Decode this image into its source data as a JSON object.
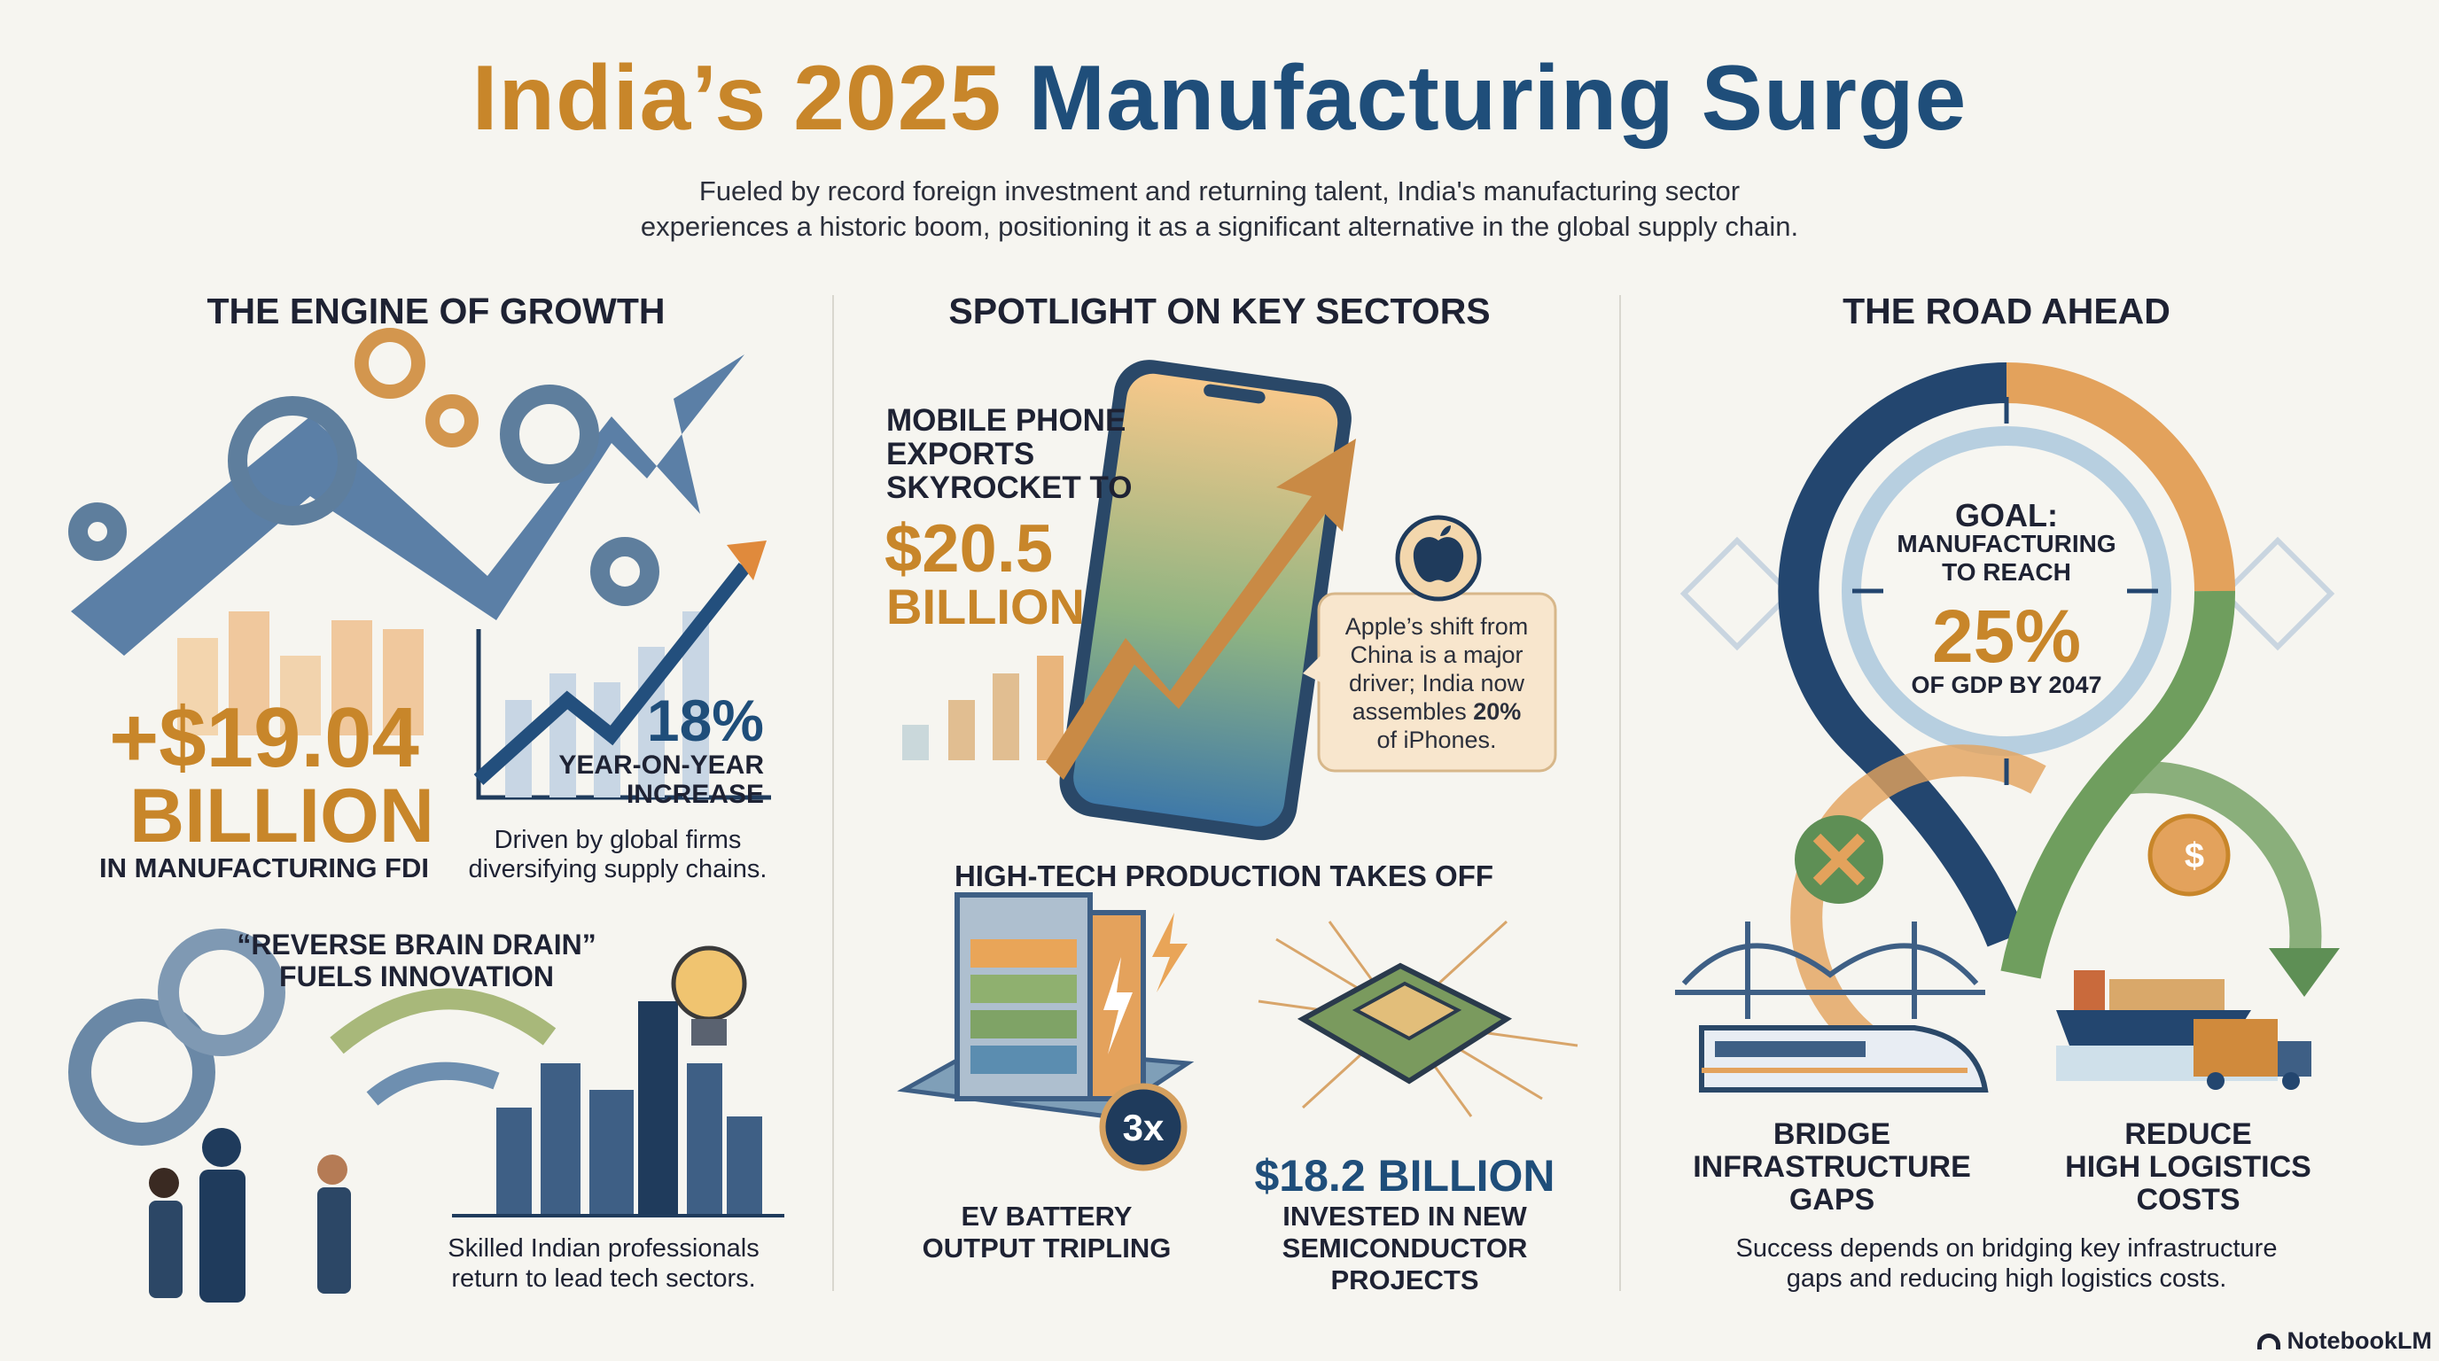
{
  "title": {
    "part1": "India’s 2025",
    "part2": "Manufacturing Surge"
  },
  "subtitle": {
    "line1": "Fueled by record foreign investment and returning talent, India's manufacturing sector",
    "line2": "experiences a historic boom, positioning it as a significant alternative in the global supply chain."
  },
  "engine": {
    "heading": "THE ENGINE OF GROWTH",
    "fdi_value": "+$19.04",
    "fdi_unit": "BILLION",
    "fdi_label": "IN MANUFACTURING FDI",
    "growth_pct": "18%",
    "growth_line1": "YEAR-ON-YEAR",
    "growth_line2": "INCREASE",
    "driver_line1": "Driven by global firms",
    "driver_line2": "diversifying supply chains.",
    "brain_line1": "“REVERSE BRAIN DRAIN”",
    "brain_line2": "FUELS INNOVATION",
    "skilled_line1": "Skilled Indian professionals",
    "skilled_line2": "return to lead tech sectors."
  },
  "sectors": {
    "heading": "SPOTLIGHT ON KEY SECTORS",
    "mobile_line1": "MOBILE PHONE",
    "mobile_line2": "EXPORTS",
    "mobile_line3": "SKYROCKET TO",
    "mobile_value": "$20.5",
    "mobile_unit": "BILLION",
    "apple_line1": "Apple’s shift from",
    "apple_line2": "China is a major",
    "apple_line3": "driver; India now",
    "apple_line4a": "assembles ",
    "apple_line4b": "20%",
    "apple_line5": "of iPhones.",
    "hightech_heading": "HIGH-TECH PRODUCTION TAKES OFF",
    "battery_badge": "3x",
    "battery_line1": "EV BATTERY",
    "battery_line2": "OUTPUT TRIPLING",
    "semi_value": "$18.2 BILLION",
    "semi_line1": "INVESTED IN NEW",
    "semi_line2": "SEMICONDUCTOR",
    "semi_line3": "PROJECTS"
  },
  "road": {
    "heading": "THE ROAD AHEAD",
    "goal_line1": "GOAL:",
    "goal_line2": "MANUFACTURING",
    "goal_line3": "TO REACH",
    "goal_value": "25%",
    "goal_line4": "OF GDP BY 2047",
    "bridge_line1": "BRIDGE",
    "bridge_line2": "INFRASTRUCTURE",
    "bridge_line3": "GAPS",
    "reduce_line1": "REDUCE",
    "reduce_line2": "HIGH LOGISTICS",
    "reduce_line3": "COSTS",
    "summary_line1": "Success depends on bridging key infrastructure",
    "summary_line2": "gaps and reducing high logistics costs.",
    "dollar_icon": "$"
  },
  "brand": "NotebookLM",
  "colors": {
    "orange": "#c8862a",
    "navy": "#1f4e7a",
    "green": "#5e8f55",
    "text": "#1e2233",
    "bg": "#f6f5f0"
  }
}
